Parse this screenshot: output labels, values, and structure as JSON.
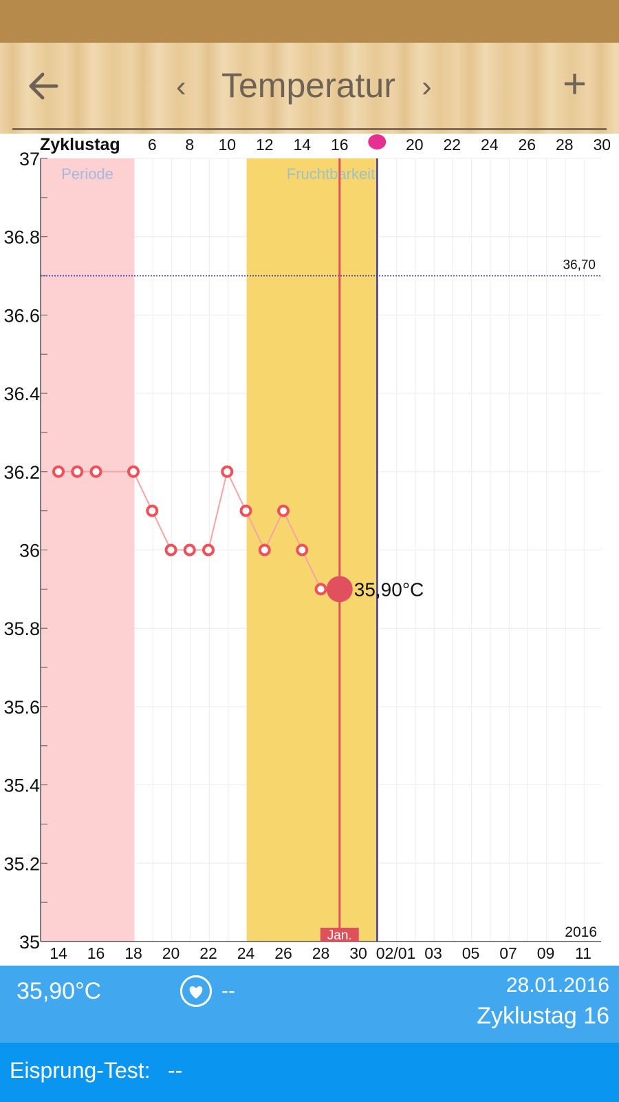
{
  "toolbar": {
    "title": "Temperatur",
    "prev": "‹",
    "next": "›",
    "plus": "+",
    "back_icon": "arrow-left-icon"
  },
  "colors": {
    "period": "#fdd0d1",
    "fertile": "#f8d66e",
    "today_line": "#e0505a",
    "ovulation_line": "#1a1ab4",
    "coverline": "#1a1ab4",
    "points": "#f0505a",
    "info_bar": "#41a8f0",
    "test_bar": "#0a96f0"
  },
  "chart_data": {
    "type": "line",
    "title": "Temperatur",
    "top_axis_label": "Zyklustag",
    "top_ticks": [
      "6",
      "8",
      "10",
      "12",
      "14",
      "16",
      "20",
      "22",
      "24",
      "26",
      "28",
      "30"
    ],
    "x_tick_labels": [
      "14",
      "16",
      "18",
      "20",
      "22",
      "24",
      "26",
      "28",
      "30",
      "02/01",
      "03",
      "05",
      "07",
      "09",
      "11"
    ],
    "y_tick_labels": [
      "37",
      "36.8",
      "36.6",
      "36.4",
      "36.2",
      "36",
      "35.8",
      "35.6",
      "35.4",
      "35.2",
      "35"
    ],
    "ylim": [
      35,
      37
    ],
    "cycle_day_range": [
      1,
      30
    ],
    "month_label": "Jan.",
    "year_label": "2016",
    "period_label": "Periode",
    "fertility_label": "Fruchtbarkeit",
    "period_days": [
      1,
      5
    ],
    "fertile_days": [
      12,
      18
    ],
    "ovulation_day": 18,
    "current_day": 16,
    "coverline": {
      "value": 36.7,
      "label": "36,70"
    },
    "series": [
      {
        "x": [
          1,
          2,
          3,
          5,
          6,
          7,
          8,
          9,
          10,
          11,
          12,
          13,
          14,
          15,
          16
        ],
        "values": [
          36.2,
          36.2,
          36.2,
          36.2,
          36.1,
          36.0,
          36.0,
          36.0,
          36.2,
          36.1,
          36.0,
          36.1,
          36.0,
          35.9,
          35.9
        ]
      }
    ],
    "current_value_label": "35,90°C"
  },
  "info": {
    "temperature": "35,90°C",
    "mucus_value": "--",
    "date": "28.01.2016",
    "cycle_day": "Zyklustag 16",
    "heart_icon": "heart-icon"
  },
  "test": {
    "label": "Eisprung-Test:",
    "value": "--"
  }
}
